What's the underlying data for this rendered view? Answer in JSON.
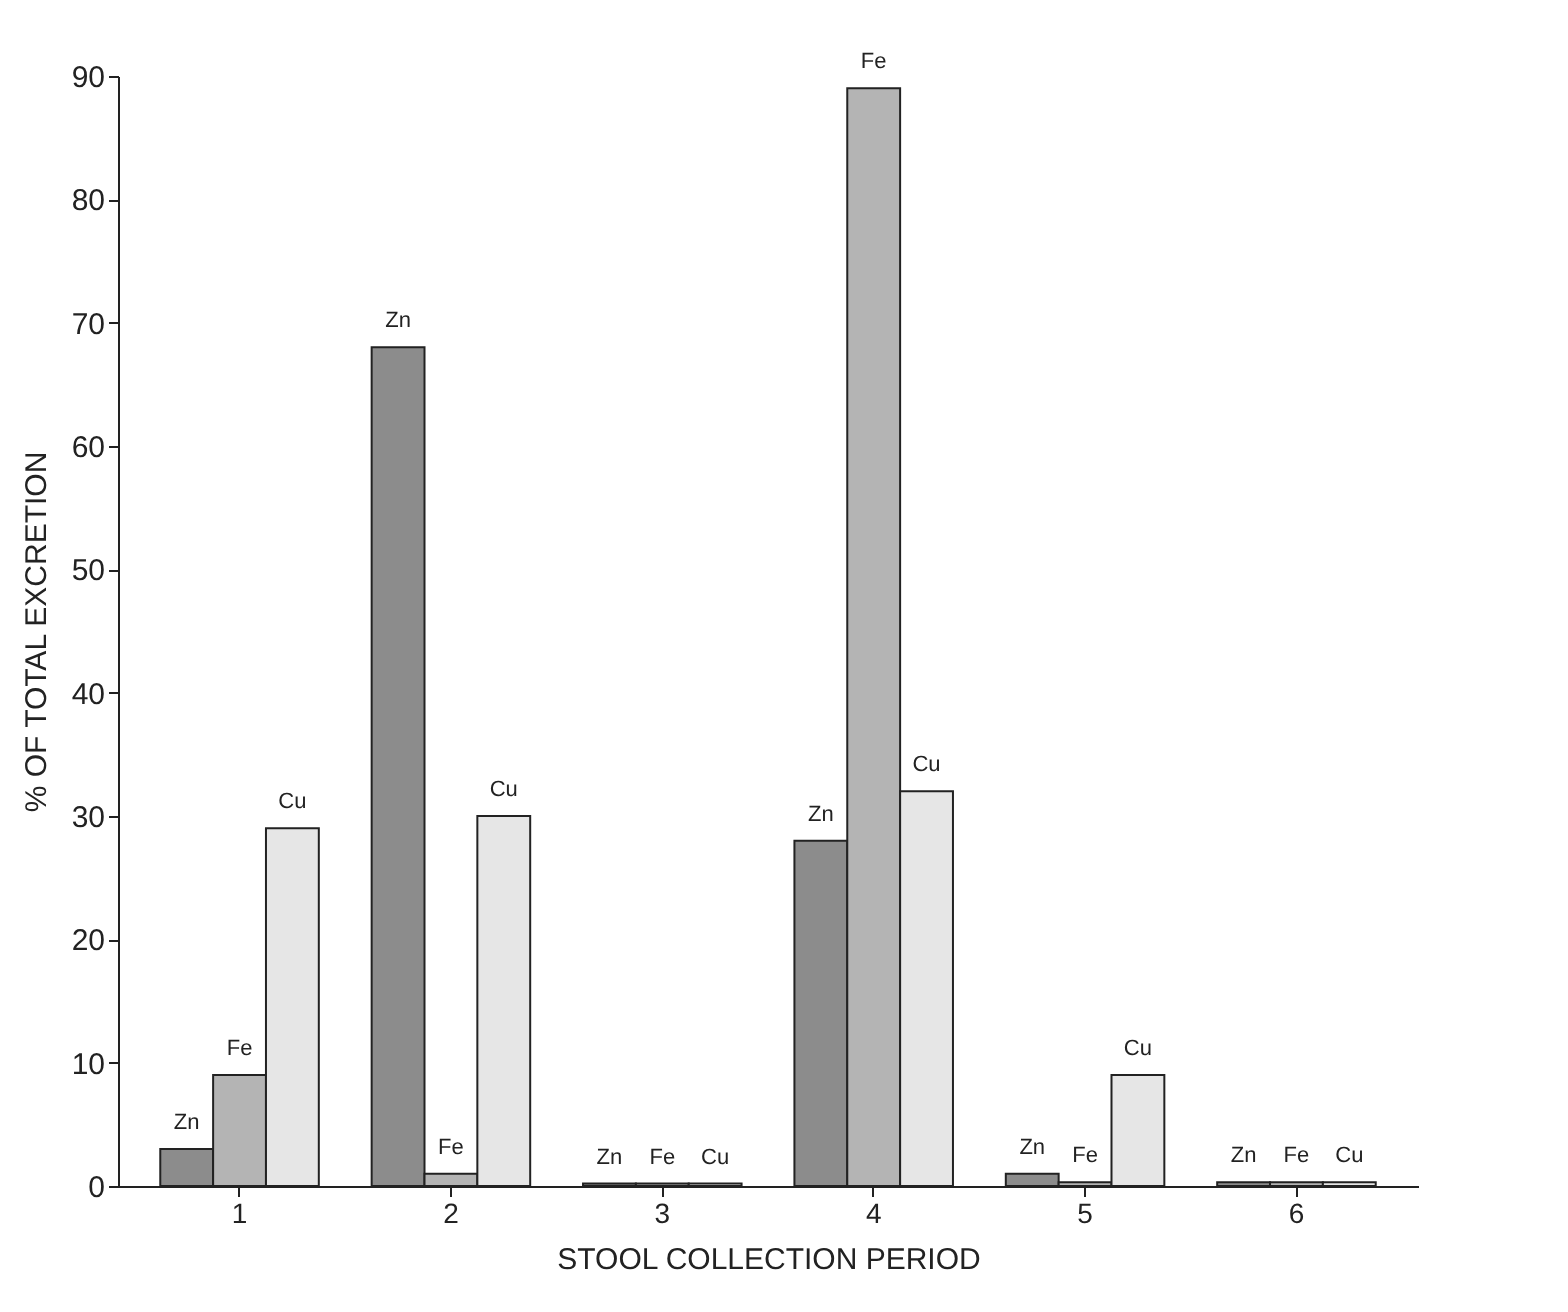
{
  "chart_data": {
    "type": "bar",
    "xlabel": "STOOL COLLECTION PERIOD",
    "ylabel": "% OF TOTAL EXCRETION",
    "categories": [
      "1",
      "2",
      "3",
      "4",
      "5",
      "6"
    ],
    "series": [
      {
        "name": "Zn",
        "color": "#8c8c8c",
        "values": [
          3,
          68,
          0.2,
          28,
          1,
          0.3
        ]
      },
      {
        "name": "Fe",
        "color": "#b4b4b4",
        "values": [
          9,
          1,
          0.2,
          89,
          0.3,
          0.3
        ]
      },
      {
        "name": "Cu",
        "color": "#e6e6e6",
        "values": [
          29,
          30,
          0.2,
          32,
          9,
          0.3
        ]
      }
    ],
    "ylim": [
      0,
      90
    ],
    "yticks": [
      0,
      10,
      20,
      30,
      40,
      50,
      60,
      70,
      80,
      90
    ],
    "grid": false,
    "legend": false
  }
}
